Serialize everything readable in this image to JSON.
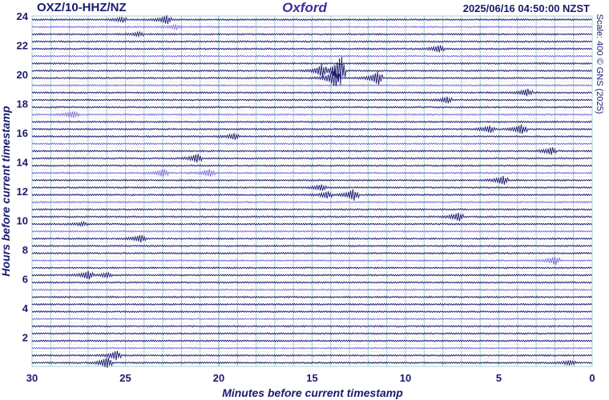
{
  "header": {
    "station": "OXZ/10-HHZ/NZ",
    "site": "Oxford",
    "timestamp": "2025/06/16 04:50:00 NZST"
  },
  "scale_note": "Scale: 400 © GNS (2025)",
  "colors": {
    "trace_dark": "#1a1a6e",
    "trace_light": "#7b68d6",
    "grid": "#a9cfd0",
    "axis_text": "#1a1a6e"
  },
  "chart_data": {
    "type": "line",
    "xlabel": "Minutes before current timestamp",
    "ylabel": "Hours before current timestamp",
    "xlim": [
      30,
      0
    ],
    "ylim": [
      0,
      24
    ],
    "x_ticks": [
      30,
      25,
      20,
      15,
      10,
      5,
      0
    ],
    "y_ticks": [
      24,
      22,
      20,
      18,
      16,
      14,
      12,
      10,
      8,
      6,
      4,
      2
    ],
    "grid": true,
    "trace_rows": 48,
    "row_spacing_hours": 0.5,
    "events": [
      {
        "hours": 23.7,
        "minutes": 25.2,
        "amp": 0.2
      },
      {
        "hours": 23.7,
        "minutes": 22.8,
        "amp": 0.35
      },
      {
        "hours": 23.2,
        "minutes": 22.3,
        "amp": 0.15
      },
      {
        "hours": 22.7,
        "minutes": 24.3,
        "amp": 0.15
      },
      {
        "hours": 21.8,
        "minutes": 8.2,
        "amp": 0.3
      },
      {
        "hours": 20.3,
        "minutes": 13.5,
        "amp": 1.3
      },
      {
        "hours": 20.3,
        "minutes": 14.5,
        "amp": 0.5
      },
      {
        "hours": 19.8,
        "minutes": 13.8,
        "amp": 0.8
      },
      {
        "hours": 19.8,
        "minutes": 11.5,
        "amp": 0.6
      },
      {
        "hours": 18.8,
        "minutes": 3.5,
        "amp": 0.3
      },
      {
        "hours": 18.3,
        "minutes": 7.8,
        "amp": 0.25
      },
      {
        "hours": 17.3,
        "minutes": 27.8,
        "amp": 0.25
      },
      {
        "hours": 16.3,
        "minutes": 3.8,
        "amp": 0.4
      },
      {
        "hours": 16.3,
        "minutes": 5.5,
        "amp": 0.3
      },
      {
        "hours": 15.8,
        "minutes": 19.2,
        "amp": 0.25
      },
      {
        "hours": 14.8,
        "minutes": 2.2,
        "amp": 0.3
      },
      {
        "hours": 14.3,
        "minutes": 21.2,
        "amp": 0.35
      },
      {
        "hours": 13.3,
        "minutes": 23.0,
        "amp": 0.3
      },
      {
        "hours": 13.3,
        "minutes": 20.5,
        "amp": 0.3
      },
      {
        "hours": 12.8,
        "minutes": 4.8,
        "amp": 0.35
      },
      {
        "hours": 12.3,
        "minutes": 14.5,
        "amp": 0.25
      },
      {
        "hours": 11.8,
        "minutes": 12.8,
        "amp": 0.5
      },
      {
        "hours": 11.8,
        "minutes": 14.2,
        "amp": 0.3
      },
      {
        "hours": 10.3,
        "minutes": 7.2,
        "amp": 0.35
      },
      {
        "hours": 9.8,
        "minutes": 27.3,
        "amp": 0.15
      },
      {
        "hours": 8.8,
        "minutes": 24.2,
        "amp": 0.3
      },
      {
        "hours": 7.3,
        "minutes": 2.0,
        "amp": 0.35
      },
      {
        "hours": 6.3,
        "minutes": 27.0,
        "amp": 0.35
      },
      {
        "hours": 6.3,
        "minutes": 26.0,
        "amp": 0.2
      },
      {
        "hours": 0.8,
        "minutes": 25.5,
        "amp": 0.4
      },
      {
        "hours": 0.3,
        "minutes": 26.0,
        "amp": 0.45
      },
      {
        "hours": 0.3,
        "minutes": 1.2,
        "amp": 0.2
      }
    ]
  }
}
